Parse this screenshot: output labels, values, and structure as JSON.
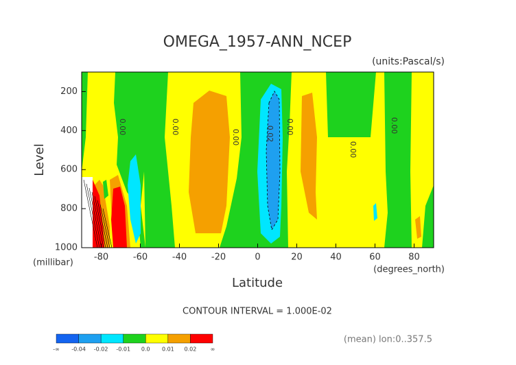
{
  "chart_data": {
    "type": "contour",
    "title": "OMEGA_1957-ANN_NCEP",
    "subtitle": "(units:Pascal/s)",
    "xlabel": "Latitude",
    "ylabel": "Level",
    "xunits": "(degrees_north)",
    "yunits": "(millibar)",
    "xlim": [
      -90,
      90
    ],
    "xticks": [
      -80,
      -60,
      -40,
      -20,
      0,
      20,
      40,
      60,
      80
    ],
    "ylim": [
      1000,
      100
    ],
    "yticks": [
      200,
      400,
      600,
      800,
      1000
    ],
    "contour_interval": "CONTOUR INTERVAL = 1.000E-02",
    "footer": "(mean) lon:0..357.5",
    "contour_labels": [
      {
        "value": 0,
        "label": "0.00"
      },
      {
        "value": 0,
        "label": "0.00"
      },
      {
        "value": 0,
        "label": "0.00"
      },
      {
        "value": 0.02,
        "label": "0.02"
      },
      {
        "value": 0,
        "label": "0.00"
      },
      {
        "value": 0,
        "label": "0.00"
      },
      {
        "value": 0,
        "label": "0.00"
      }
    ],
    "colorbar": {
      "colors": [
        "#1464f0",
        "#1ea0f0",
        "#00e6ff",
        "#1ed21e",
        "#ffff00",
        "#f5a000",
        "#ff0000"
      ],
      "ends": [
        "-∞",
        "∞"
      ],
      "ticks": [
        -0.04,
        -0.02,
        -0.01,
        {
          "value": 0,
          "label": "0.0"
        },
        0.01,
        0.02
      ]
    }
  }
}
